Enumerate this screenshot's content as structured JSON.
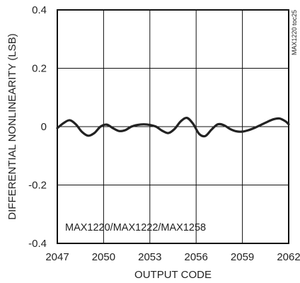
{
  "chart_data": {
    "type": "line",
    "title": "",
    "xlabel": "OUTPUT CODE",
    "ylabel": "DIFFERENTIAL NONLINEARITY (LSB)",
    "xlim": [
      2047,
      2062
    ],
    "ylim": [
      -0.4,
      0.4
    ],
    "xticks": [
      2047,
      2050,
      2053,
      2056,
      2059,
      2062
    ],
    "yticks": [
      -0.4,
      -0.2,
      0,
      0.2,
      0.4
    ],
    "xtick_labels": [
      "2047",
      "2050",
      "2053",
      "2056",
      "2059",
      "2062"
    ],
    "ytick_labels": [
      "-0.4",
      "-0.2",
      "0",
      "0.2",
      "0.4"
    ],
    "grid": true,
    "annotation": "MAX1220/MAX1222/MAX1258",
    "side_label": "MAX1220 toc25",
    "series": [
      {
        "color": "#222222",
        "x": [
          2047.0,
          2047.4,
          2047.8,
          2048.2,
          2048.6,
          2049.0,
          2049.4,
          2049.8,
          2050.2,
          2050.6,
          2051.0,
          2051.4,
          2051.8,
          2052.2,
          2052.6,
          2053.0,
          2053.4,
          2053.8,
          2054.2,
          2054.6,
          2055.0,
          2055.4,
          2055.8,
          2056.2,
          2056.6,
          2057.0,
          2057.4,
          2057.8,
          2058.2,
          2058.6,
          2059.0,
          2059.4,
          2059.8,
          2060.2,
          2060.6,
          2061.0,
          2061.4,
          2061.8,
          2062.0
        ],
        "y": [
          -0.005,
          0.012,
          0.022,
          0.008,
          -0.018,
          -0.031,
          -0.022,
          0.0,
          0.007,
          -0.005,
          -0.015,
          -0.012,
          0.0,
          0.006,
          0.008,
          0.006,
          0.0,
          -0.014,
          -0.022,
          -0.008,
          0.018,
          0.03,
          0.01,
          -0.025,
          -0.032,
          -0.01,
          0.008,
          0.005,
          -0.008,
          -0.016,
          -0.017,
          -0.012,
          -0.004,
          0.006,
          0.016,
          0.025,
          0.028,
          0.018,
          0.008
        ]
      }
    ]
  }
}
